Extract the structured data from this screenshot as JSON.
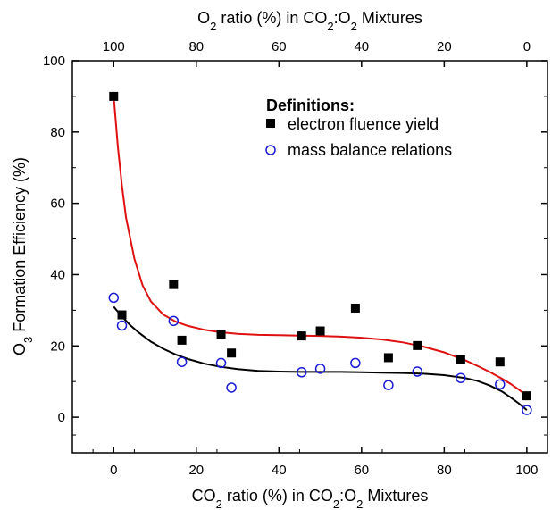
{
  "chart_data": {
    "type": "scatter",
    "xlabel_bottom": [
      "CO",
      "2",
      " ratio (%) in CO",
      "2",
      ":O",
      "2",
      " Mixtures"
    ],
    "xlabel_top": [
      "O",
      "2",
      " ratio (%) in CO",
      "2",
      ":O",
      "2",
      " Mixtures"
    ],
    "ylabel": [
      "O",
      "3",
      " Formation Efficiency (%)"
    ],
    "xlim": [
      -10,
      105
    ],
    "ylim": [
      -10,
      100
    ],
    "xticks": [
      0,
      20,
      40,
      60,
      80,
      100
    ],
    "xticks_top": [
      100,
      80,
      60,
      40,
      20,
      0
    ],
    "yticks": [
      0,
      20,
      40,
      60,
      80,
      100
    ],
    "legend": {
      "title": "Definitions:",
      "placement": "top-right",
      "entries": [
        "electron fluence yield",
        "mass balance relations"
      ]
    },
    "series": [
      {
        "name": "electron fluence yield",
        "marker": "filled-square",
        "color": "#000000",
        "x": [
          0,
          2,
          14.5,
          16.5,
          26,
          28.5,
          45.5,
          50,
          58.5,
          66.5,
          73.5,
          84,
          93.5,
          100
        ],
        "y": [
          90,
          28.7,
          37.2,
          21.6,
          23.3,
          18,
          22.8,
          24.2,
          30.6,
          16.7,
          20.1,
          16.1,
          15.5,
          6
        ]
      },
      {
        "name": "mass balance relations",
        "marker": "open-circle",
        "color": "#1a1ad8",
        "x": [
          0,
          2,
          14.5,
          16.5,
          26,
          28.5,
          45.5,
          50,
          58.5,
          66.5,
          73.5,
          84,
          93.5,
          100
        ],
        "y": [
          33.5,
          25.7,
          27,
          15.5,
          15.2,
          8.3,
          12.6,
          13.6,
          15.2,
          9,
          12.8,
          11,
          9.2,
          2
        ]
      }
    ],
    "fits": [
      {
        "color": "#e01010",
        "x": [
          0,
          1,
          2,
          3,
          5,
          7,
          9,
          12,
          15,
          18,
          22,
          26,
          30,
          35,
          40,
          45,
          50,
          55,
          60,
          65,
          70,
          75,
          80,
          85,
          88,
          91,
          94,
          96,
          98,
          100
        ],
        "y": [
          90,
          76,
          65,
          56,
          44.5,
          37,
          32.5,
          28.8,
          26.8,
          25.6,
          24.5,
          23.8,
          23.4,
          23.1,
          23,
          22.9,
          22.8,
          22.6,
          22.3,
          21.8,
          21,
          19.8,
          18.2,
          16,
          14.4,
          12.7,
          10.8,
          9.4,
          7.8,
          6
        ]
      },
      {
        "color": "#000000",
        "x": [
          0,
          2,
          4,
          6,
          9,
          12,
          15,
          18,
          22,
          26,
          30,
          35,
          40,
          45,
          50,
          55,
          60,
          65,
          70,
          75,
          80,
          85,
          88,
          91,
          94,
          96,
          98,
          100
        ],
        "y": [
          31,
          28.2,
          25.8,
          23.8,
          21.2,
          19.2,
          17.6,
          16.3,
          15,
          14.1,
          13.5,
          13,
          12.8,
          12.7,
          12.7,
          12.7,
          12.6,
          12.5,
          12.4,
          12.2,
          11.8,
          11,
          10.2,
          8.9,
          7.2,
          5.6,
          3.9,
          2
        ]
      }
    ]
  }
}
